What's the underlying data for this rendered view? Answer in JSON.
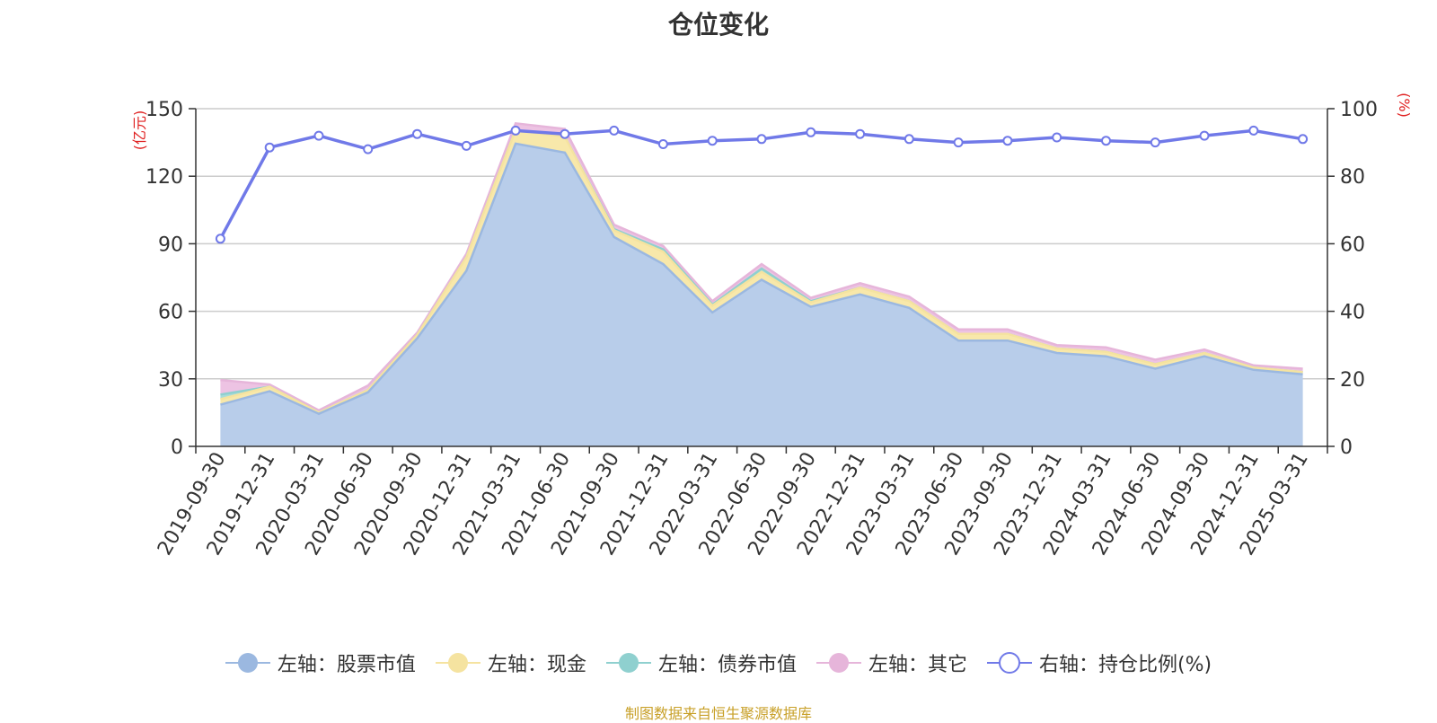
{
  "chart_data": {
    "type": "area",
    "title": "仓位变化",
    "left_axis_unit": "(亿元)",
    "right_axis_unit": "(%)",
    "ylim_left": [
      0,
      150
    ],
    "ylim_right": [
      0,
      100
    ],
    "yticks_left": [
      0,
      30,
      60,
      90,
      120,
      150
    ],
    "yticks_right": [
      0,
      20,
      40,
      60,
      80,
      100
    ],
    "categories": [
      "2019-09-30",
      "2019-12-31",
      "2020-03-31",
      "2020-06-30",
      "2020-09-30",
      "2020-12-31",
      "2021-03-31",
      "2021-06-30",
      "2021-09-30",
      "2021-12-31",
      "2022-03-31",
      "2022-06-30",
      "2022-09-30",
      "2022-12-31",
      "2023-03-31",
      "2023-06-30",
      "2023-09-30",
      "2023-12-31",
      "2024-03-31",
      "2024-06-30",
      "2024-09-30",
      "2024-12-31",
      "2025-03-31"
    ],
    "series": [
      {
        "name": "左轴：股票市值",
        "axis": "left",
        "color": "#9bb8e0",
        "fill": "#b8cdea",
        "values": [
          18.5,
          24.5,
          14.5,
          24,
          48,
          78,
          134.5,
          130.5,
          93,
          81,
          59.5,
          74,
          62,
          67.5,
          61.5,
          47,
          47,
          41.5,
          40,
          34.5,
          40,
          34,
          32
        ]
      },
      {
        "name": "左轴：现金",
        "axis": "left",
        "color": "#f5e3a0",
        "fill": "#f8e8aa",
        "values": [
          2.5,
          2,
          0.5,
          1,
          1.5,
          6,
          6,
          7,
          3,
          5.5,
          3,
          3.5,
          2,
          3,
          3,
          3,
          3,
          2,
          2,
          2,
          1.5,
          1,
          1
        ]
      },
      {
        "name": "左轴：债券市值",
        "axis": "left",
        "color": "#8fd0cf",
        "fill": "#a9dcd8",
        "values": [
          2,
          0,
          0,
          0,
          0,
          0,
          0,
          0,
          0.5,
          1,
          0.5,
          1.5,
          0.5,
          0,
          0,
          0,
          0,
          0,
          0,
          0,
          0,
          0,
          0
        ]
      },
      {
        "name": "左轴：其它",
        "axis": "left",
        "color": "#e6b5da",
        "fill": "#edc3e3",
        "values": [
          6.5,
          1,
          1,
          2,
          1,
          1.5,
          3,
          3.5,
          2,
          1.5,
          1.5,
          2,
          1.5,
          2,
          2,
          2,
          2,
          1.5,
          2,
          2,
          1.5,
          1,
          1.5
        ]
      },
      {
        "name": "右轴：持仓比例(%)",
        "axis": "right",
        "color": "#7079e8",
        "values": [
          61.5,
          88.5,
          92,
          88,
          92.5,
          89,
          93.5,
          92.5,
          93.5,
          89.5,
          90.5,
          91,
          93,
          92.5,
          91,
          90,
          90.5,
          91.5,
          90.5,
          90,
          92,
          93.5,
          91
        ]
      }
    ]
  },
  "legend": {
    "items": [
      "左轴：股票市值",
      "左轴：现金",
      "左轴：债券市值",
      "左轴：其它",
      "右轴：持仓比例(%)"
    ]
  },
  "source_note": "制图数据来自恒生聚源数据库"
}
